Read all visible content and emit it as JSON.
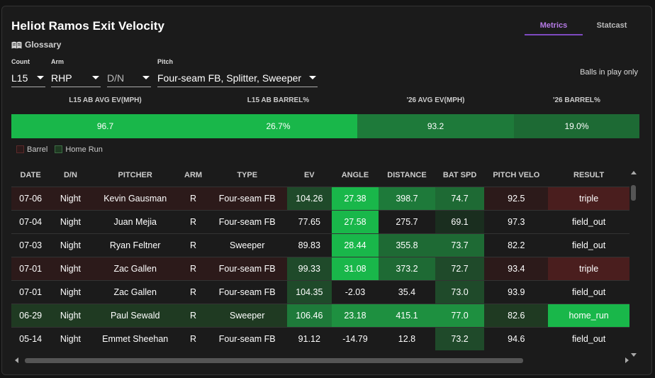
{
  "header": {
    "title": "Heliot Ramos Exit Velocity",
    "glossary_label": "Glossary"
  },
  "tabs": [
    {
      "label": "Metrics",
      "active": true
    },
    {
      "label": "Statcast",
      "active": false
    }
  ],
  "filters": {
    "count": {
      "label": "Count",
      "value": "L15"
    },
    "arm": {
      "label": "Arm",
      "value": "RHP"
    },
    "dn": {
      "label": "",
      "value": "D/N"
    },
    "pitch": {
      "label": "Pitch",
      "value": "Four-seam FB, Splitter, Sweeper"
    }
  },
  "balls_in_play_label": "Balls in play only",
  "summary": {
    "headers": [
      "L15 AB AVG EV(MPH)",
      "L15 AB BARREL%",
      "'26 AVG EV(MPH)",
      "'26 BARREL%"
    ],
    "values": [
      "96.7",
      "26.7%",
      "93.2",
      "19.0%"
    ]
  },
  "legend": {
    "barrel": "Barrel",
    "home_run": "Home Run"
  },
  "colors": {
    "accent": "#7e4ac0",
    "barrel_row": "#2c1a1a",
    "hr_row": "#1f3a22",
    "bright_green": "#19b74a",
    "mid_green": "#1e9040",
    "dark_green": "#1f4a2a",
    "triple_red": "#4a1e1e"
  },
  "table": {
    "columns": [
      "DATE",
      "D/N",
      "PITCHER",
      "ARM",
      "TYPE",
      "EV",
      "ANGLE",
      "DISTANCE",
      "BAT SPD",
      "PITCH VELO",
      "RESULT"
    ],
    "rows": [
      {
        "date": "07-06",
        "dn": "Night",
        "pitcher": "Kevin Gausman",
        "arm": "R",
        "type": "Four-seam FB",
        "ev": "104.26",
        "angle": "27.38",
        "distance": "398.7",
        "bat_spd": "74.7",
        "velo": "92.5",
        "result": "triple",
        "kind": "barrel"
      },
      {
        "date": "07-04",
        "dn": "Night",
        "pitcher": "Juan Mejia",
        "arm": "R",
        "type": "Four-seam FB",
        "ev": "77.65",
        "angle": "27.58",
        "distance": "275.7",
        "bat_spd": "69.1",
        "velo": "97.3",
        "result": "field_out",
        "kind": "none"
      },
      {
        "date": "07-03",
        "dn": "Night",
        "pitcher": "Ryan Feltner",
        "arm": "R",
        "type": "Sweeper",
        "ev": "89.83",
        "angle": "28.44",
        "distance": "355.8",
        "bat_spd": "73.7",
        "velo": "82.2",
        "result": "field_out",
        "kind": "none"
      },
      {
        "date": "07-01",
        "dn": "Night",
        "pitcher": "Zac Gallen",
        "arm": "R",
        "type": "Four-seam FB",
        "ev": "99.33",
        "angle": "31.08",
        "distance": "373.2",
        "bat_spd": "72.7",
        "velo": "93.4",
        "result": "triple",
        "kind": "barrel"
      },
      {
        "date": "07-01",
        "dn": "Night",
        "pitcher": "Zac Gallen",
        "arm": "R",
        "type": "Four-seam FB",
        "ev": "104.35",
        "angle": "-2.03",
        "distance": "35.4",
        "bat_spd": "73.0",
        "velo": "93.9",
        "result": "field_out",
        "kind": "none"
      },
      {
        "date": "06-29",
        "dn": "Night",
        "pitcher": "Paul Sewald",
        "arm": "R",
        "type": "Sweeper",
        "ev": "106.46",
        "angle": "23.18",
        "distance": "415.1",
        "bat_spd": "77.0",
        "velo": "82.6",
        "result": "home_run",
        "kind": "hr"
      },
      {
        "date": "05-14",
        "dn": "Night",
        "pitcher": "Emmet Sheehan",
        "arm": "R",
        "type": "Four-seam FB",
        "ev": "91.12",
        "angle": "-14.79",
        "distance": "12.8",
        "bat_spd": "73.2",
        "velo": "94.6",
        "result": "field_out",
        "kind": "none"
      }
    ]
  }
}
